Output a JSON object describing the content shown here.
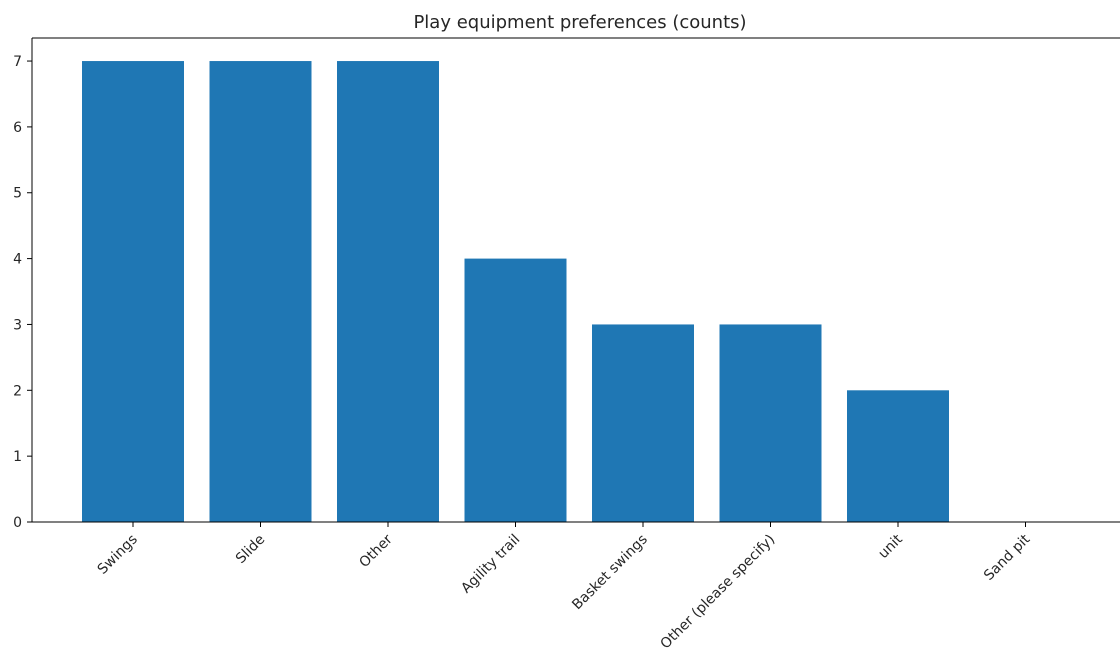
{
  "chart_data": {
    "type": "bar",
    "title": "Play equipment preferences (counts)",
    "xlabel": "",
    "ylabel": "",
    "categories": [
      "Swings",
      "Slide",
      "Other",
      "Agility trail",
      "Basket swings",
      "Other (please specify)",
      "unit",
      "Sand pit"
    ],
    "values": [
      7,
      7,
      7,
      4,
      3,
      3,
      2,
      0
    ],
    "ylim": [
      0,
      7.35
    ],
    "yticks": [
      0,
      1,
      2,
      3,
      4,
      5,
      6,
      7
    ],
    "bar_color": "#1f77b4",
    "grid": false,
    "legend": "none"
  }
}
